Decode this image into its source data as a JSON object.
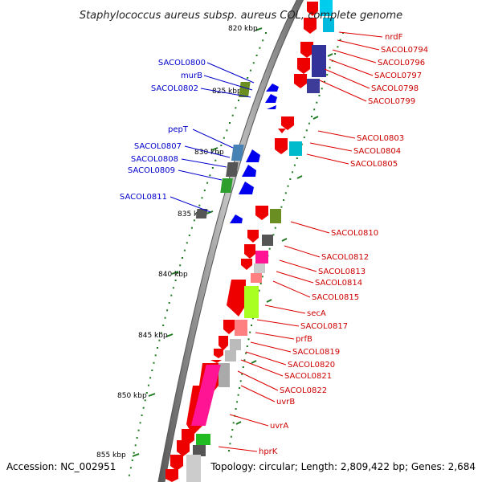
{
  "title": "Staphylococcus aureus subsp. aureus COL, complete genome",
  "accession": "Accession: NC_002951",
  "summary": "Topology: circular; Length: 2,809,422 bp; Genes: 2,684",
  "colors": {
    "backbone": "#8a8a8a",
    "minus_strand_label": "#0000cc",
    "plus_strand_label": "#cc0000",
    "tick": "#1f7a1f"
  },
  "scale_labels": [
    "820 kbp",
    "825 kbp",
    "830 kbp",
    "835 kbp",
    "840 kbp",
    "845 kbp",
    "850 kbp",
    "855 kbp"
  ],
  "left_labels": [
    "SACOL0800",
    "murB",
    "SACOL0802",
    "pepT",
    "SACOL0807",
    "SACOL0808",
    "SACOL0809",
    "SACOL0811"
  ],
  "right_labels": [
    "nrdF",
    "SACOL0794",
    "SACOL0796",
    "SACOL0797",
    "SACOL0798",
    "SACOL0799",
    "SACOL0803",
    "SACOL0804",
    "SACOL0805",
    "SACOL0810",
    "SACOL0812",
    "SACOL0813",
    "SACOL0814",
    "SACOL0815",
    "secA",
    "SACOL0817",
    "prfB",
    "SACOL0819",
    "SACOL0820",
    "SACOL0821",
    "SACOL0822",
    "uvrB",
    "uvrA",
    "hprK"
  ]
}
